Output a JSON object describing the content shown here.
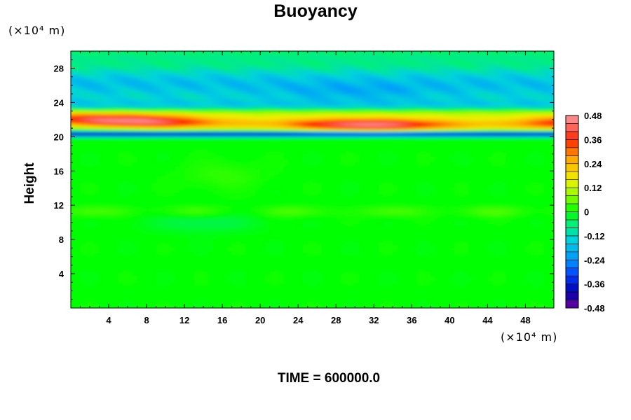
{
  "chart_data": {
    "type": "heatmap",
    "title": "Buoyancy",
    "ylabel": "Height",
    "x_unit": "(×10⁴ m)",
    "y_unit": "(×10⁴ m)",
    "footer": "TIME = 600000.0",
    "xlim": [
      0,
      51
    ],
    "ylim": [
      0,
      30
    ],
    "x_ticks": [
      4,
      8,
      12,
      16,
      20,
      24,
      28,
      32,
      36,
      40,
      44,
      48
    ],
    "y_ticks": [
      4,
      8,
      12,
      16,
      20,
      24,
      28
    ],
    "colorbar": {
      "range": [
        -0.48,
        0.48
      ],
      "step": 0.04,
      "labels": [
        "0.48",
        "0.36",
        "0.24",
        "0.12",
        "0",
        "-0.12",
        "-0.24",
        "-0.36",
        "-0.48"
      ]
    },
    "field_description": "Near-zero buoyancy below height 20; thin strong negative layer near height 20.3; strong positive band near height 21-22; weakly negative layer between heights 24 and 28 with a stronger negative patch near x 24-36, height 25."
  }
}
